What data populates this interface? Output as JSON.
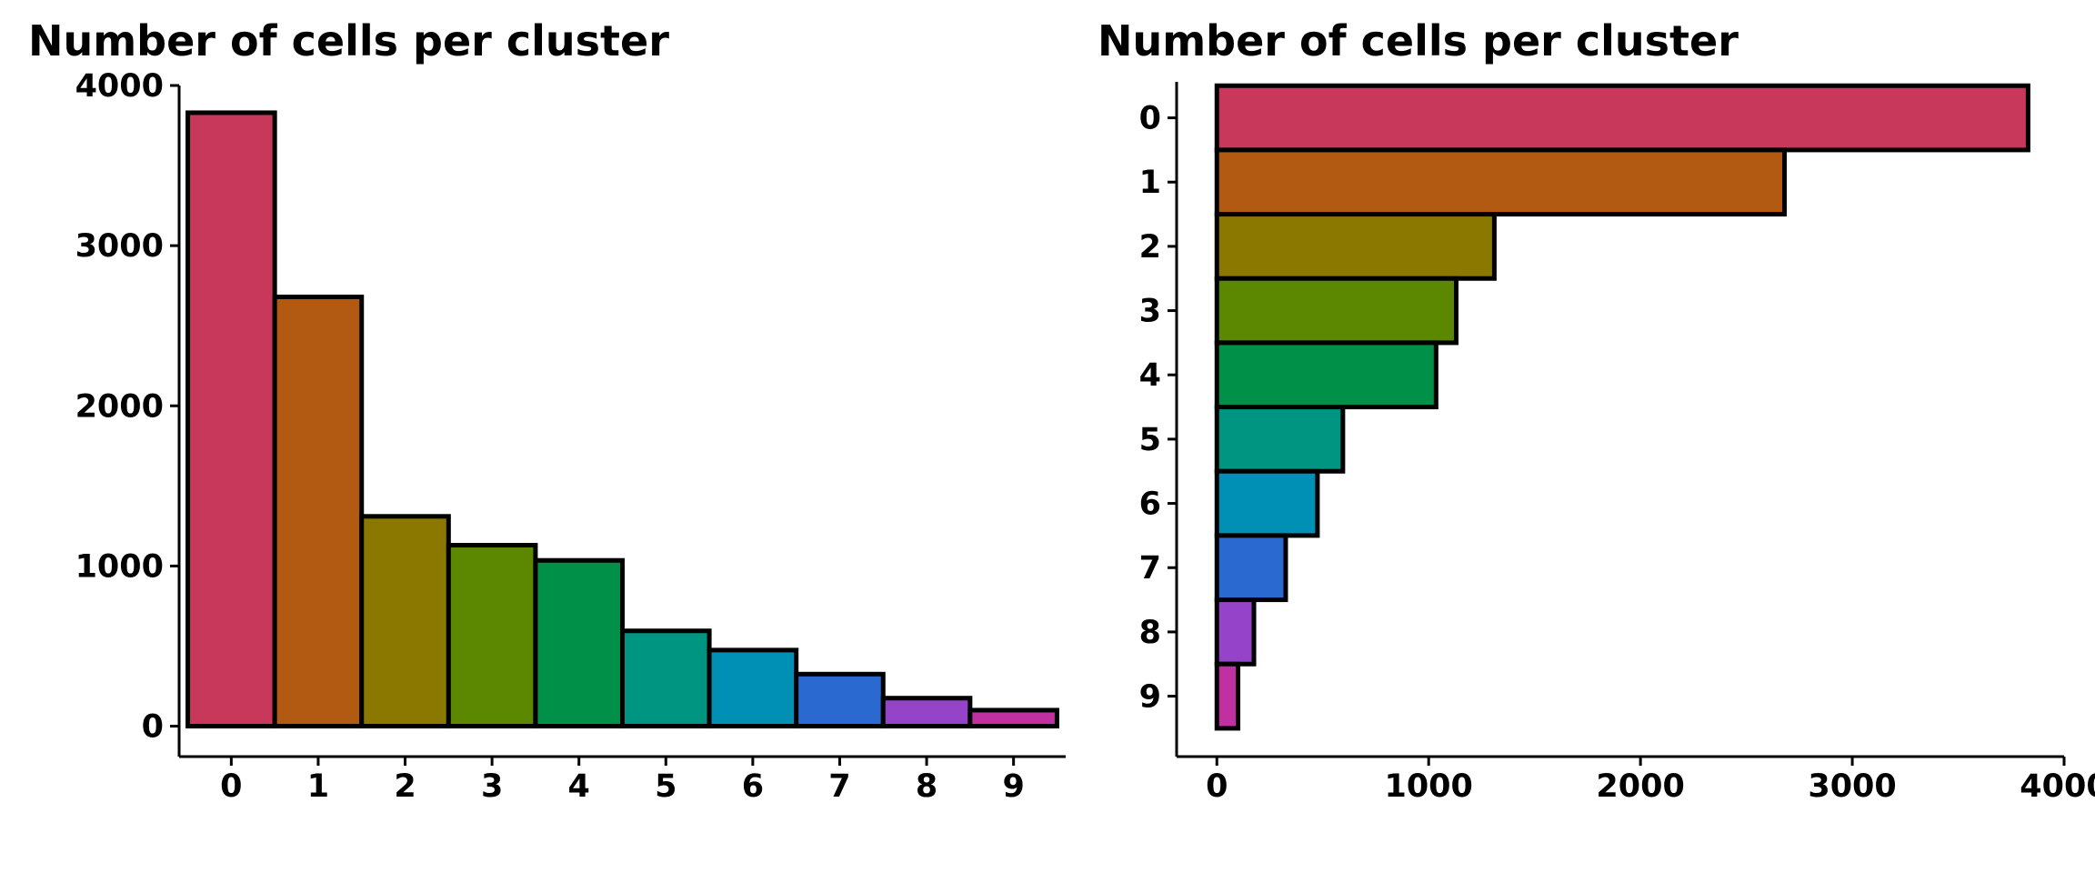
{
  "chart_data": [
    {
      "type": "bar",
      "orientation": "vertical",
      "title": "Number of cells per cluster",
      "xlabel": "",
      "ylabel": "",
      "categories": [
        "0",
        "1",
        "2",
        "3",
        "4",
        "5",
        "6",
        "7",
        "8",
        "9"
      ],
      "values": [
        3830,
        2680,
        1310,
        1130,
        1035,
        595,
        475,
        325,
        175,
        100
      ],
      "colors": [
        "#C8385A",
        "#B35A12",
        "#8B7800",
        "#5B8800",
        "#009048",
        "#009580",
        "#0090B5",
        "#2A6AD0",
        "#9543C8",
        "#C030A0"
      ],
      "ylim": [
        -190,
        4000
      ],
      "yticks": [
        0,
        1000,
        2000,
        3000,
        4000
      ],
      "grid": false,
      "legend": "none"
    },
    {
      "type": "bar",
      "orientation": "horizontal",
      "title": "Number of cells per cluster",
      "xlabel": "",
      "ylabel": "",
      "categories": [
        "0",
        "1",
        "2",
        "3",
        "4",
        "5",
        "6",
        "7",
        "8",
        "9"
      ],
      "values": [
        3830,
        2680,
        1310,
        1130,
        1035,
        595,
        475,
        325,
        175,
        100
      ],
      "colors": [
        "#C8385A",
        "#B35A12",
        "#8B7800",
        "#5B8800",
        "#009048",
        "#009580",
        "#0090B5",
        "#2A6AD0",
        "#9543C8",
        "#C030A0"
      ],
      "xlim": [
        -190,
        4000
      ],
      "xticks": [
        0,
        1000,
        2000,
        3000,
        4000
      ],
      "grid": false,
      "legend": "none"
    }
  ]
}
